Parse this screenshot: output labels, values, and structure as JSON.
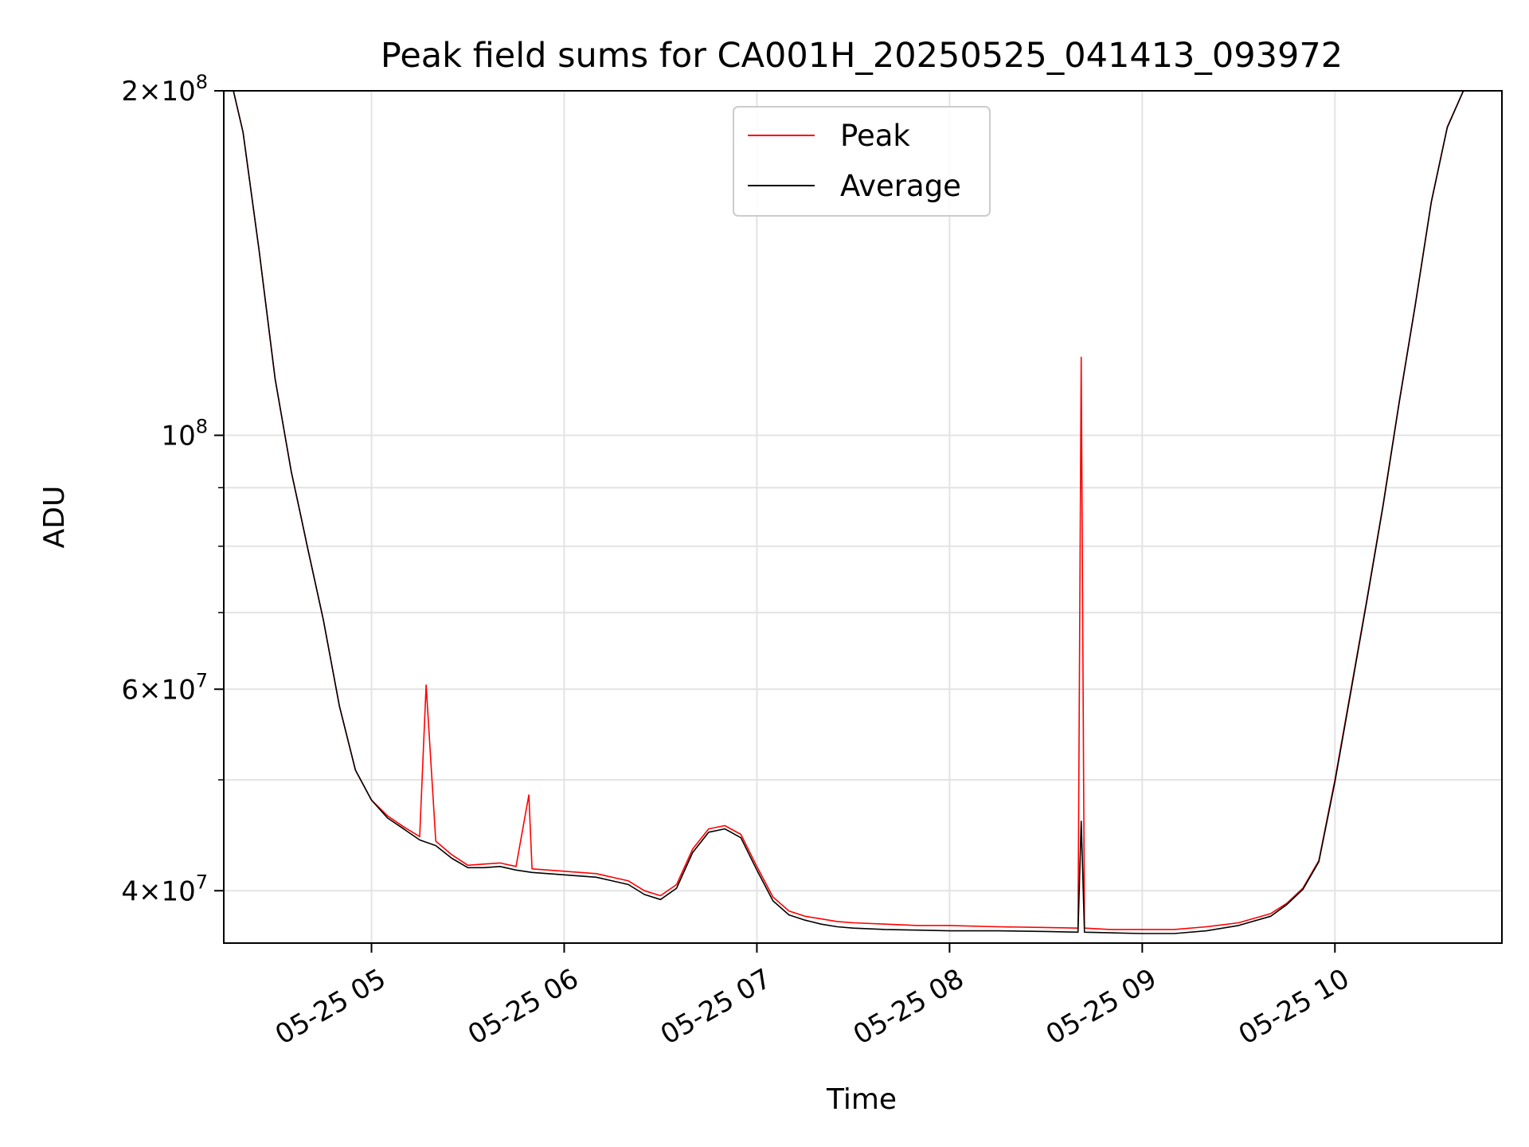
{
  "chart_data": {
    "type": "line",
    "title": "Peak field sums for CA001H_20250525_041413_093972",
    "xlabel": "Time",
    "ylabel": "ADU",
    "yscale": "log",
    "grid": true,
    "legend_position": "upper center",
    "xlim": [
      "2025-05-25 04:14",
      "2025-05-25 10:52"
    ],
    "ylim": [
      36000000,
      200000000
    ],
    "x_ticks": [
      "05-25 05",
      "05-25 06",
      "05-25 07",
      "05-25 08",
      "05-25 09",
      "05-25 10"
    ],
    "y_ticks": [
      {
        "value": 40000000,
        "mantissa": "4",
        "exponent": "7"
      },
      {
        "value": 60000000,
        "mantissa": "6",
        "exponent": "7"
      },
      {
        "value": 100000000,
        "mantissa": "",
        "exponent": "8"
      },
      {
        "value": 200000000,
        "mantissa": "2",
        "exponent": "8"
      }
    ],
    "series": [
      {
        "name": "Peak",
        "color": "#ff0000",
        "x": [
          "2025-05-25 04:14",
          "2025-05-25 04:17",
          "2025-05-25 04:20",
          "2025-05-25 04:25",
          "2025-05-25 04:30",
          "2025-05-25 04:35",
          "2025-05-25 04:38",
          "2025-05-25 04:40",
          "2025-05-25 04:45",
          "2025-05-25 04:50",
          "2025-05-25 04:55",
          "2025-05-25 05:00",
          "2025-05-25 05:05",
          "2025-05-25 05:10",
          "2025-05-25 05:15",
          "2025-05-25 05:17",
          "2025-05-25 05:20",
          "2025-05-25 05:25",
          "2025-05-25 05:30",
          "2025-05-25 05:35",
          "2025-05-25 05:40",
          "2025-05-25 05:45",
          "2025-05-25 05:49",
          "2025-05-25 05:50",
          "2025-05-25 05:55",
          "2025-05-25 06:00",
          "2025-05-25 06:10",
          "2025-05-25 06:20",
          "2025-05-25 06:25",
          "2025-05-25 06:30",
          "2025-05-25 06:35",
          "2025-05-25 06:40",
          "2025-05-25 06:45",
          "2025-05-25 06:50",
          "2025-05-25 06:55",
          "2025-05-25 07:00",
          "2025-05-25 07:05",
          "2025-05-25 07:10",
          "2025-05-25 07:15",
          "2025-05-25 07:20",
          "2025-05-25 07:25",
          "2025-05-25 07:30",
          "2025-05-25 07:40",
          "2025-05-25 07:50",
          "2025-05-25 08:00",
          "2025-05-25 08:15",
          "2025-05-25 08:30",
          "2025-05-25 08:40",
          "2025-05-25 08:41",
          "2025-05-25 08:42",
          "2025-05-25 08:50",
          "2025-05-25 09:00",
          "2025-05-25 09:10",
          "2025-05-25 09:20",
          "2025-05-25 09:30",
          "2025-05-25 09:40",
          "2025-05-25 09:45",
          "2025-05-25 09:50",
          "2025-05-25 09:55",
          "2025-05-25 10:00",
          "2025-05-25 10:05",
          "2025-05-25 10:10",
          "2025-05-25 10:15",
          "2025-05-25 10:20",
          "2025-05-25 10:25",
          "2025-05-25 10:30",
          "2025-05-25 10:35",
          "2025-05-25 10:40",
          "2025-05-25 10:45",
          "2025-05-25 10:52"
        ],
        "y": [
          200000000,
          200000000,
          184000000,
          145000000,
          112000000,
          93000000,
          85000000,
          80000000,
          69000000,
          58000000,
          51000000,
          48000000,
          46500000,
          45500000,
          44600000,
          60500000,
          44200000,
          43000000,
          42100000,
          42200000,
          42300000,
          42000000,
          48500000,
          41800000,
          41700000,
          41600000,
          41400000,
          40800000,
          40000000,
          39600000,
          40500000,
          43500000,
          45300000,
          45600000,
          44800000,
          42000000,
          39500000,
          38400000,
          38000000,
          37800000,
          37600000,
          37500000,
          37400000,
          37300000,
          37300000,
          37200000,
          37150000,
          37100000,
          117000000,
          37100000,
          37000000,
          37000000,
          37000000,
          37200000,
          37500000,
          38200000,
          39000000,
          40200000,
          42500000,
          50000000,
          60000000,
          72000000,
          87000000,
          107000000,
          130000000,
          160000000,
          186000000,
          200000000,
          200000000,
          200000000
        ]
      },
      {
        "name": "Average",
        "color": "#000000",
        "x": [
          "2025-05-25 04:14",
          "2025-05-25 04:17",
          "2025-05-25 04:20",
          "2025-05-25 04:25",
          "2025-05-25 04:30",
          "2025-05-25 04:35",
          "2025-05-25 04:38",
          "2025-05-25 04:40",
          "2025-05-25 04:45",
          "2025-05-25 04:50",
          "2025-05-25 04:55",
          "2025-05-25 05:00",
          "2025-05-25 05:05",
          "2025-05-25 05:10",
          "2025-05-25 05:15",
          "2025-05-25 05:20",
          "2025-05-25 05:25",
          "2025-05-25 05:30",
          "2025-05-25 05:35",
          "2025-05-25 05:40",
          "2025-05-25 05:45",
          "2025-05-25 05:50",
          "2025-05-25 05:55",
          "2025-05-25 06:00",
          "2025-05-25 06:10",
          "2025-05-25 06:20",
          "2025-05-25 06:25",
          "2025-05-25 06:30",
          "2025-05-25 06:35",
          "2025-05-25 06:40",
          "2025-05-25 06:45",
          "2025-05-25 06:50",
          "2025-05-25 06:55",
          "2025-05-25 07:00",
          "2025-05-25 07:05",
          "2025-05-25 07:10",
          "2025-05-25 07:15",
          "2025-05-25 07:20",
          "2025-05-25 07:25",
          "2025-05-25 07:30",
          "2025-05-25 07:40",
          "2025-05-25 07:50",
          "2025-05-25 08:00",
          "2025-05-25 08:15",
          "2025-05-25 08:30",
          "2025-05-25 08:40",
          "2025-05-25 08:41",
          "2025-05-25 08:42",
          "2025-05-25 08:50",
          "2025-05-25 09:00",
          "2025-05-25 09:10",
          "2025-05-25 09:20",
          "2025-05-25 09:30",
          "2025-05-25 09:40",
          "2025-05-25 09:45",
          "2025-05-25 09:50",
          "2025-05-25 09:55",
          "2025-05-25 10:00",
          "2025-05-25 10:05",
          "2025-05-25 10:10",
          "2025-05-25 10:15",
          "2025-05-25 10:20",
          "2025-05-25 10:25",
          "2025-05-25 10:30",
          "2025-05-25 10:35",
          "2025-05-25 10:40",
          "2025-05-25 10:45",
          "2025-05-25 10:52"
        ],
        "y": [
          200000000,
          200000000,
          184000000,
          145000000,
          112000000,
          93000000,
          85000000,
          80000000,
          69000000,
          58000000,
          51000000,
          48000000,
          46300000,
          45300000,
          44300000,
          43800000,
          42700000,
          41900000,
          41900000,
          42000000,
          41700000,
          41500000,
          41400000,
          41300000,
          41100000,
          40500000,
          39700000,
          39300000,
          40200000,
          43200000,
          45000000,
          45300000,
          44500000,
          41700000,
          39200000,
          38100000,
          37700000,
          37400000,
          37200000,
          37100000,
          37000000,
          36950000,
          36900000,
          36900000,
          36850000,
          36800000,
          46000000,
          36800000,
          36750000,
          36700000,
          36700000,
          36900000,
          37300000,
          38000000,
          38900000,
          40100000,
          42400000,
          49800000,
          59800000,
          71800000,
          86800000,
          106800000,
          129800000,
          159800000,
          185800000,
          200000000,
          200000000,
          200000000
        ]
      }
    ]
  }
}
